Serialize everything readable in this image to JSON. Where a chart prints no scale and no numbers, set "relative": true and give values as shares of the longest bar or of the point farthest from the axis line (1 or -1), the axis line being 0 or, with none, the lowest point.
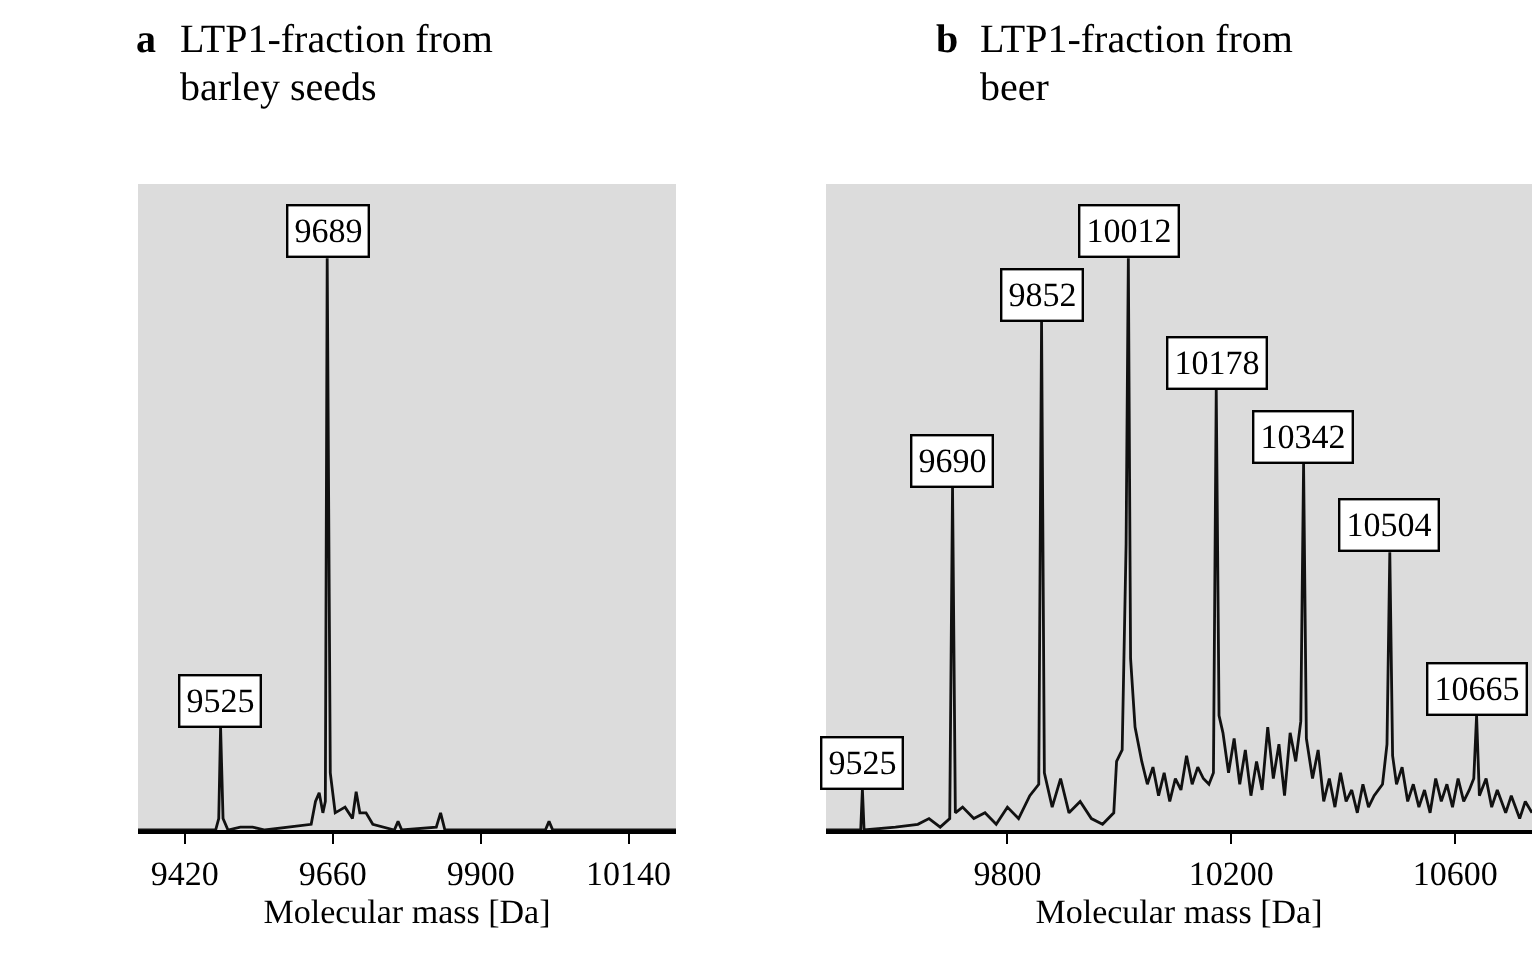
{
  "chart_data": [
    {
      "type": "line",
      "title": "a LTP1-fraction from\nbarley seeds",
      "xlabel": "Molecular mass [Da]",
      "relative": true,
      "xlim": [
        9344,
        10217
      ],
      "xticks": [
        9420,
        9660,
        9900,
        10140
      ],
      "marker": "none",
      "line_style": "solid",
      "series": [
        {
          "color": "#111111",
          "x": [
            9344,
            9470,
            9475,
            9478,
            9482,
            9490,
            9510,
            9530,
            9550,
            9625,
            9632,
            9638,
            9644,
            9648,
            9651,
            9656,
            9664,
            9680,
            9692,
            9698,
            9704,
            9714,
            9725,
            9760,
            9766,
            9772,
            9828,
            9835,
            9842,
            9900,
            10005,
            10011,
            10017,
            10217
          ],
          "values": [
            0,
            0,
            0.02,
            0.18,
            0.02,
            0,
            0.005,
            0.005,
            0,
            0.01,
            0.05,
            0.065,
            0.03,
            0.05,
            1,
            0.1,
            0.03,
            0.04,
            0.02,
            0.067,
            0.03,
            0.03,
            0.01,
            0,
            0.015,
            0,
            0.005,
            0.03,
            0,
            0,
            0,
            0.015,
            0,
            0
          ]
        }
      ],
      "annotations": [
        {
          "text": "9525",
          "x": 9478,
          "y": 0.18
        },
        {
          "text": "9689",
          "x": 9651,
          "y": 1
        }
      ]
    },
    {
      "type": "line",
      "title": "b LTP1-fraction from\nbeer",
      "xlabel": "Molecular mass [Da]",
      "relative": true,
      "xlim": [
        9476,
        10737
      ],
      "xticks": [
        9800,
        10200,
        10600
      ],
      "marker": "none",
      "line_style": "solid",
      "series": [
        {
          "color": "#111111",
          "x": [
            9476,
            9520,
            9538,
            9541,
            9544,
            9600,
            9640,
            9660,
            9680,
            9697,
            9702,
            9707,
            9720,
            9740,
            9760,
            9780,
            9800,
            9820,
            9840,
            9856,
            9861,
            9866,
            9880,
            9895,
            9910,
            9930,
            9950,
            9970,
            9990,
            9995,
            10005,
            10012,
            10016,
            10020,
            10028,
            10040,
            10050,
            10060,
            10070,
            10080,
            10090,
            10100,
            10110,
            10120,
            10130,
            10140,
            10150,
            10160,
            10168,
            10173,
            10178,
            10185,
            10195,
            10205,
            10215,
            10225,
            10235,
            10245,
            10255,
            10265,
            10275,
            10285,
            10295,
            10305,
            10315,
            10324,
            10329,
            10334,
            10345,
            10355,
            10365,
            10375,
            10385,
            10395,
            10405,
            10415,
            10425,
            10435,
            10445,
            10455,
            10470,
            10478,
            10483,
            10488,
            10495,
            10505,
            10515,
            10525,
            10535,
            10545,
            10555,
            10565,
            10575,
            10585,
            10595,
            10605,
            10615,
            10625,
            10633,
            10638,
            10643,
            10655,
            10665,
            10675,
            10690,
            10700,
            10715,
            10725,
            10737
          ],
          "values": [
            0,
            0,
            0,
            0.071,
            0,
            0.005,
            0.01,
            0.02,
            0.005,
            0.02,
            0.6,
            0.03,
            0.04,
            0.02,
            0.03,
            0.01,
            0.04,
            0.02,
            0.06,
            0.08,
            0.889,
            0.1,
            0.04,
            0.09,
            0.03,
            0.05,
            0.02,
            0.01,
            0.03,
            0.12,
            0.14,
            0.5,
            1,
            0.3,
            0.18,
            0.12,
            0.08,
            0.11,
            0.06,
            0.1,
            0.05,
            0.09,
            0.07,
            0.13,
            0.08,
            0.11,
            0.09,
            0.08,
            0.1,
            0.77,
            0.2,
            0.17,
            0.1,
            0.16,
            0.08,
            0.14,
            0.06,
            0.12,
            0.07,
            0.18,
            0.09,
            0.15,
            0.06,
            0.17,
            0.12,
            0.19,
            0.64,
            0.16,
            0.09,
            0.14,
            0.05,
            0.09,
            0.04,
            0.1,
            0.05,
            0.07,
            0.03,
            0.08,
            0.04,
            0.06,
            0.08,
            0.15,
            0.486,
            0.13,
            0.08,
            0.11,
            0.05,
            0.08,
            0.04,
            0.07,
            0.03,
            0.09,
            0.05,
            0.08,
            0.04,
            0.09,
            0.05,
            0.07,
            0.09,
            0.2,
            0.06,
            0.09,
            0.04,
            0.07,
            0.03,
            0.06,
            0.02,
            0.05,
            0.03
          ]
        }
      ],
      "annotations": [
        {
          "text": "9525",
          "x": 9541,
          "y": 0.071
        },
        {
          "text": "9690",
          "x": 9702,
          "y": 0.6
        },
        {
          "text": "9852",
          "x": 9861,
          "y": 0.889
        },
        {
          "text": "10012",
          "x": 10016,
          "y": 1
        },
        {
          "text": "10178",
          "x": 10173,
          "y": 0.77
        },
        {
          "text": "10342",
          "x": 10329,
          "y": 0.64
        },
        {
          "text": "10504",
          "x": 10483,
          "y": 0.486
        },
        {
          "text": "10665",
          "x": 10638,
          "y": 0.2
        }
      ]
    }
  ]
}
